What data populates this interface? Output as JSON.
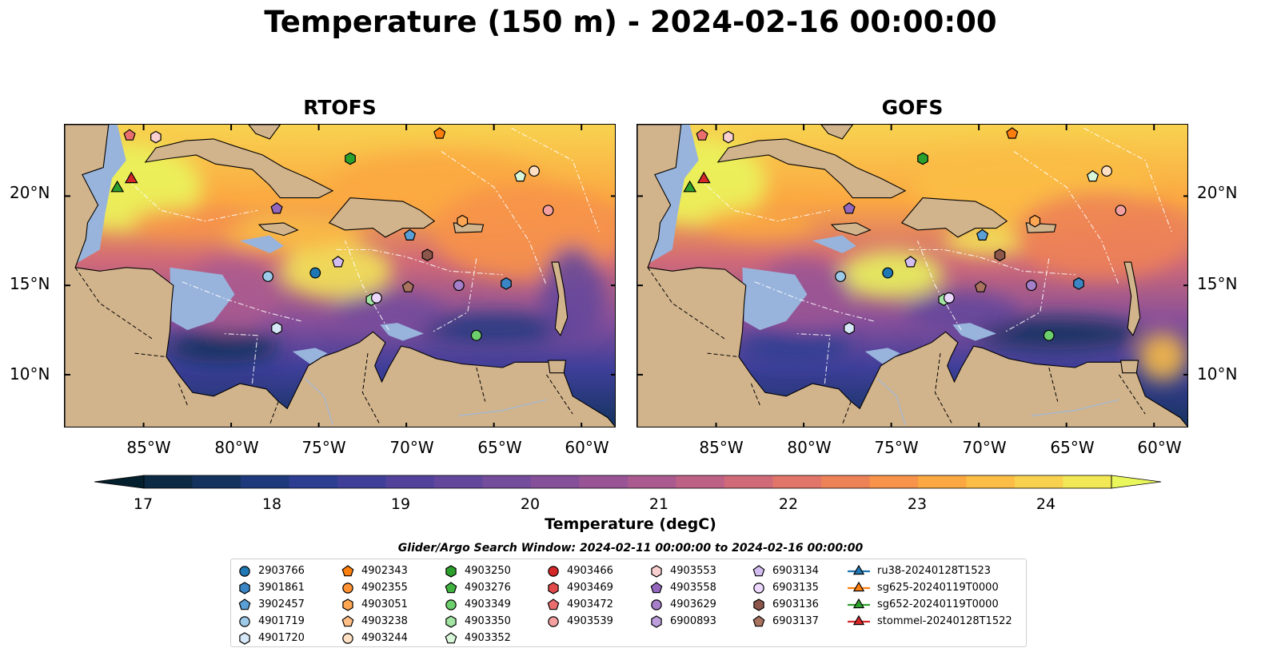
{
  "title": "Temperature (150 m) - 2024-02-16 00:00:00",
  "panels": [
    {
      "title": "RTOFS"
    },
    {
      "title": "GOFS"
    }
  ],
  "lat_labels": [
    "20°N",
    "15°N",
    "10°N"
  ],
  "lon_labels": [
    "85°W",
    "80°W",
    "75°W",
    "70°W",
    "65°W",
    "60°W"
  ],
  "colorbar": {
    "label": "Temperature (degC)",
    "ticks": [
      "17",
      "18",
      "19",
      "20",
      "21",
      "22",
      "23",
      "24"
    ],
    "min": 16.5,
    "max": 24.5,
    "step": 0.5,
    "colors": [
      "#04202e",
      "#0c2a44",
      "#13335e",
      "#1e3a7d",
      "#2c3d92",
      "#3f3f9a",
      "#53429c",
      "#63479c",
      "#744c9c",
      "#864f9a",
      "#985495",
      "#aa5a8f",
      "#bd6185",
      "#d06a78",
      "#e1756a",
      "#ee8257",
      "#f7934a",
      "#fba842",
      "#fbbd45",
      "#f8d24f",
      "#f2e755",
      "#e9f65c"
    ]
  },
  "legend": {
    "title": "Glider/Argo Search Window: 2024-02-11 00:00:00 to 2024-02-16 00:00:00",
    "columns": [
      [
        {
          "label": "2903766",
          "marker": "circle",
          "color": "#1f77b4"
        },
        {
          "label": "3901861",
          "marker": "hexagon",
          "color": "#3a86c4"
        },
        {
          "label": "3902457",
          "marker": "pentagon",
          "color": "#5a9fd6"
        },
        {
          "label": "4901719",
          "marker": "circle",
          "color": "#9ecae9"
        },
        {
          "label": "4901720",
          "marker": "hexagon",
          "color": "#d6e8f7"
        }
      ],
      [
        {
          "label": "4902343",
          "marker": "pentagon",
          "color": "#ff7f0e"
        },
        {
          "label": "4902355",
          "marker": "circle",
          "color": "#ff9232"
        },
        {
          "label": "4903051",
          "marker": "hexagon",
          "color": "#ffa652"
        },
        {
          "label": "4903238",
          "marker": "pentagon",
          "color": "#ffbf86"
        },
        {
          "label": "4903244",
          "marker": "circle",
          "color": "#ffe0c2"
        }
      ],
      [
        {
          "label": "4903250",
          "marker": "hexagon",
          "color": "#2ca02c"
        },
        {
          "label": "4903276",
          "marker": "pentagon",
          "color": "#3fb23f"
        },
        {
          "label": "4903349",
          "marker": "circle",
          "color": "#6ccf6c"
        },
        {
          "label": "4903350",
          "marker": "hexagon",
          "color": "#a2e5a2"
        },
        {
          "label": "4903352",
          "marker": "pentagon",
          "color": "#d8f6d8"
        }
      ],
      [
        {
          "label": "4903466",
          "marker": "circle",
          "color": "#d62728"
        },
        {
          "label": "4903469",
          "marker": "hexagon",
          "color": "#e04a4a"
        },
        {
          "label": "4903472",
          "marker": "pentagon",
          "color": "#eb6e6e"
        },
        {
          "label": "4903539",
          "marker": "circle",
          "color": "#f4a0a0"
        }
      ],
      [
        {
          "label": "4903553",
          "marker": "hexagon",
          "color": "#f9cfcf"
        },
        {
          "label": "4903558",
          "marker": "pentagon",
          "color": "#9467bd"
        },
        {
          "label": "4903629",
          "marker": "circle",
          "color": "#a57fca"
        },
        {
          "label": "6900893",
          "marker": "hexagon",
          "color": "#bc9fdc"
        }
      ],
      [
        {
          "label": "6903134",
          "marker": "pentagon",
          "color": "#d3bdf0"
        },
        {
          "label": "6903135",
          "marker": "circle",
          "color": "#ecd8ff"
        },
        {
          "label": "6903136",
          "marker": "hexagon",
          "color": "#8c564b"
        },
        {
          "label": "6903137",
          "marker": "pentagon",
          "color": "#a8735f"
        }
      ],
      [
        {
          "label": "ru38-20240128T1523",
          "marker": "triangle-line",
          "color": "#1f77b4"
        },
        {
          "label": "sg625-20240119T0000",
          "marker": "triangle-line",
          "color": "#ff7f0e"
        },
        {
          "label": "sg652-20240119T0000",
          "marker": "triangle-line",
          "color": "#2ca02c"
        },
        {
          "label": "stommel-20240128T1522",
          "marker": "triangle-line",
          "color": "#d62728"
        }
      ]
    ]
  },
  "map_extent": {
    "lon": [
      -89.5,
      -58.0
    ],
    "lat": [
      7.0,
      24.0
    ]
  },
  "land_color": "#d2b48c",
  "shelf_color": "#98b4dc",
  "markers": [
    {
      "label": "2903766",
      "lon": -75.2,
      "lat": 15.7
    },
    {
      "label": "3901861",
      "lon": -64.3,
      "lat": 15.1
    },
    {
      "label": "3902457",
      "lon": -69.8,
      "lat": 17.8
    },
    {
      "label": "4901719",
      "lon": -77.9,
      "lat": 15.5
    },
    {
      "label": "4901720",
      "lon": -77.4,
      "lat": 12.6
    },
    {
      "label": "4902343",
      "lon": -68.1,
      "lat": 23.5
    },
    {
      "label": "4903051",
      "lon": -66.8,
      "lat": 18.6
    },
    {
      "label": "4903250",
      "lon": -73.2,
      "lat": 22.1
    },
    {
      "label": "4903349",
      "lon": -66.0,
      "lat": 12.2
    },
    {
      "label": "4903350",
      "lon": -72.0,
      "lat": 14.2
    },
    {
      "label": "4903352",
      "lon": -63.5,
      "lat": 21.1
    },
    {
      "label": "4903472",
      "lon": -85.8,
      "lat": 23.4
    },
    {
      "label": "4903539",
      "lon": -61.9,
      "lat": 19.2
    },
    {
      "label": "4903553",
      "lon": -84.3,
      "lat": 23.3
    },
    {
      "label": "4903244",
      "lon": -62.7,
      "lat": 21.4
    },
    {
      "label": "4903558",
      "lon": -77.4,
      "lat": 19.3
    },
    {
      "label": "4903629",
      "lon": -67.0,
      "lat": 15.0
    },
    {
      "label": "6903134",
      "lon": -73.9,
      "lat": 16.3
    },
    {
      "label": "6903135",
      "lon": -71.7,
      "lat": 14.3
    },
    {
      "label": "6903136",
      "lon": -68.8,
      "lat": 16.7
    },
    {
      "label": "6903137",
      "lon": -69.9,
      "lat": 14.9
    }
  ],
  "tracks": [
    {
      "label": "sg652-20240119T0000",
      "lon": -86.5,
      "lat": 20.5
    },
    {
      "label": "stommel-20240128T1522",
      "lon": -85.7,
      "lat": 21.0
    }
  ]
}
